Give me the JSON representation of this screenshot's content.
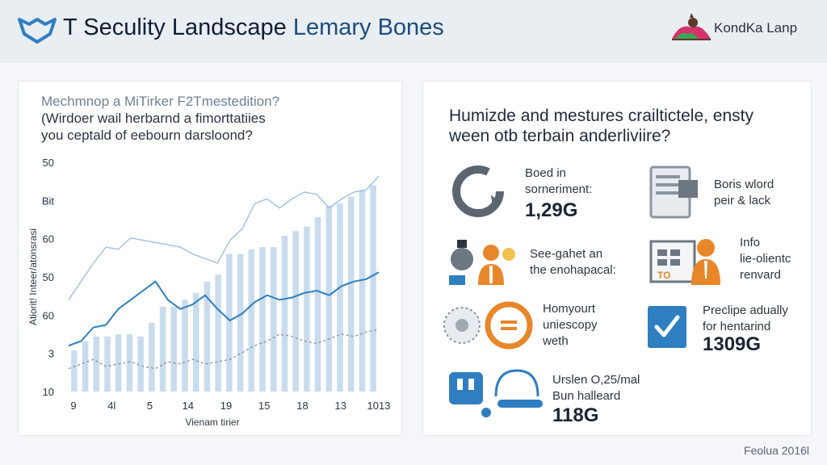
{
  "header": {
    "title_part1": "T Seculity Landscape",
    "title_part2": "Lemary Bones",
    "brand": "KondKa Lanp",
    "colors": {
      "accent": "#2f7ec1",
      "bar": "#c9dcee",
      "orange": "#e8862a"
    }
  },
  "left_panel": {
    "line1": "Mechmnop a MiTirker F2Tmestedition?",
    "line2": "(Wirdoer wail herbarnd a fimorttatiies",
    "line3": "you ceptald of eebourn darsloond?"
  },
  "chart_data": {
    "type": "bar",
    "ylabel": "Atiorit! Inteer/atonsrasi",
    "xlabel": "Vienam tirier",
    "yticks": [
      "50",
      "Bit",
      "60",
      "50",
      "60",
      "3",
      "10"
    ],
    "xticks": [
      "9",
      "4l",
      "5",
      "14",
      "19",
      "15",
      "18",
      "13",
      "1013"
    ],
    "values": [
      18,
      22,
      24,
      24,
      25,
      25,
      24,
      30,
      37,
      37,
      40,
      43,
      48,
      51,
      60,
      60,
      62,
      63,
      63,
      68,
      70,
      72,
      76,
      81,
      82,
      85,
      88,
      90
    ],
    "series": [
      {
        "values": [
          20,
          22,
          28,
          29,
          36,
          40,
          44,
          48,
          40,
          36,
          38,
          42,
          36,
          31,
          34,
          39,
          42,
          40,
          41,
          43,
          44,
          42,
          46,
          48,
          49,
          52
        ]
      },
      {
        "values": [
          40,
          48,
          56,
          63,
          62,
          67,
          66,
          65,
          64,
          63,
          60,
          58,
          56,
          66,
          71,
          82,
          84,
          80,
          84,
          87,
          86,
          80,
          84,
          87,
          88,
          94
        ]
      },
      {
        "values": [
          10,
          12,
          14,
          11,
          12,
          13,
          11,
          10,
          13,
          12,
          14,
          12,
          13,
          14,
          17,
          20,
          22,
          25,
          24,
          22,
          21,
          23,
          25,
          24,
          26,
          27
        ]
      }
    ]
  },
  "right_panel": {
    "line1": "Humizde and mestures crailtictele, ensty",
    "line2": "ween otb terbain anderliviire?",
    "stats": [
      {
        "label1": "Boed in",
        "label2": "sorneriment:",
        "value": "1,29G"
      },
      {
        "label1": "Boris wlord",
        "label2": "peir & lack"
      },
      {
        "label1": "See-gahet an",
        "label2": "the enohapacal:"
      },
      {
        "label1": "Info",
        "label2": "lie-olientc",
        "label3": "renvard"
      },
      {
        "label1": "Homyourt",
        "label2": "uniescopy",
        "label3": "weth"
      },
      {
        "label1": "Preclipe adually",
        "label2": "for hentarind",
        "value": "1309G"
      },
      {
        "label1": "Urslen O,25/mal",
        "label2": "Bun halleard",
        "value": "118G"
      }
    ]
  },
  "footer": "Feolua 2016l"
}
